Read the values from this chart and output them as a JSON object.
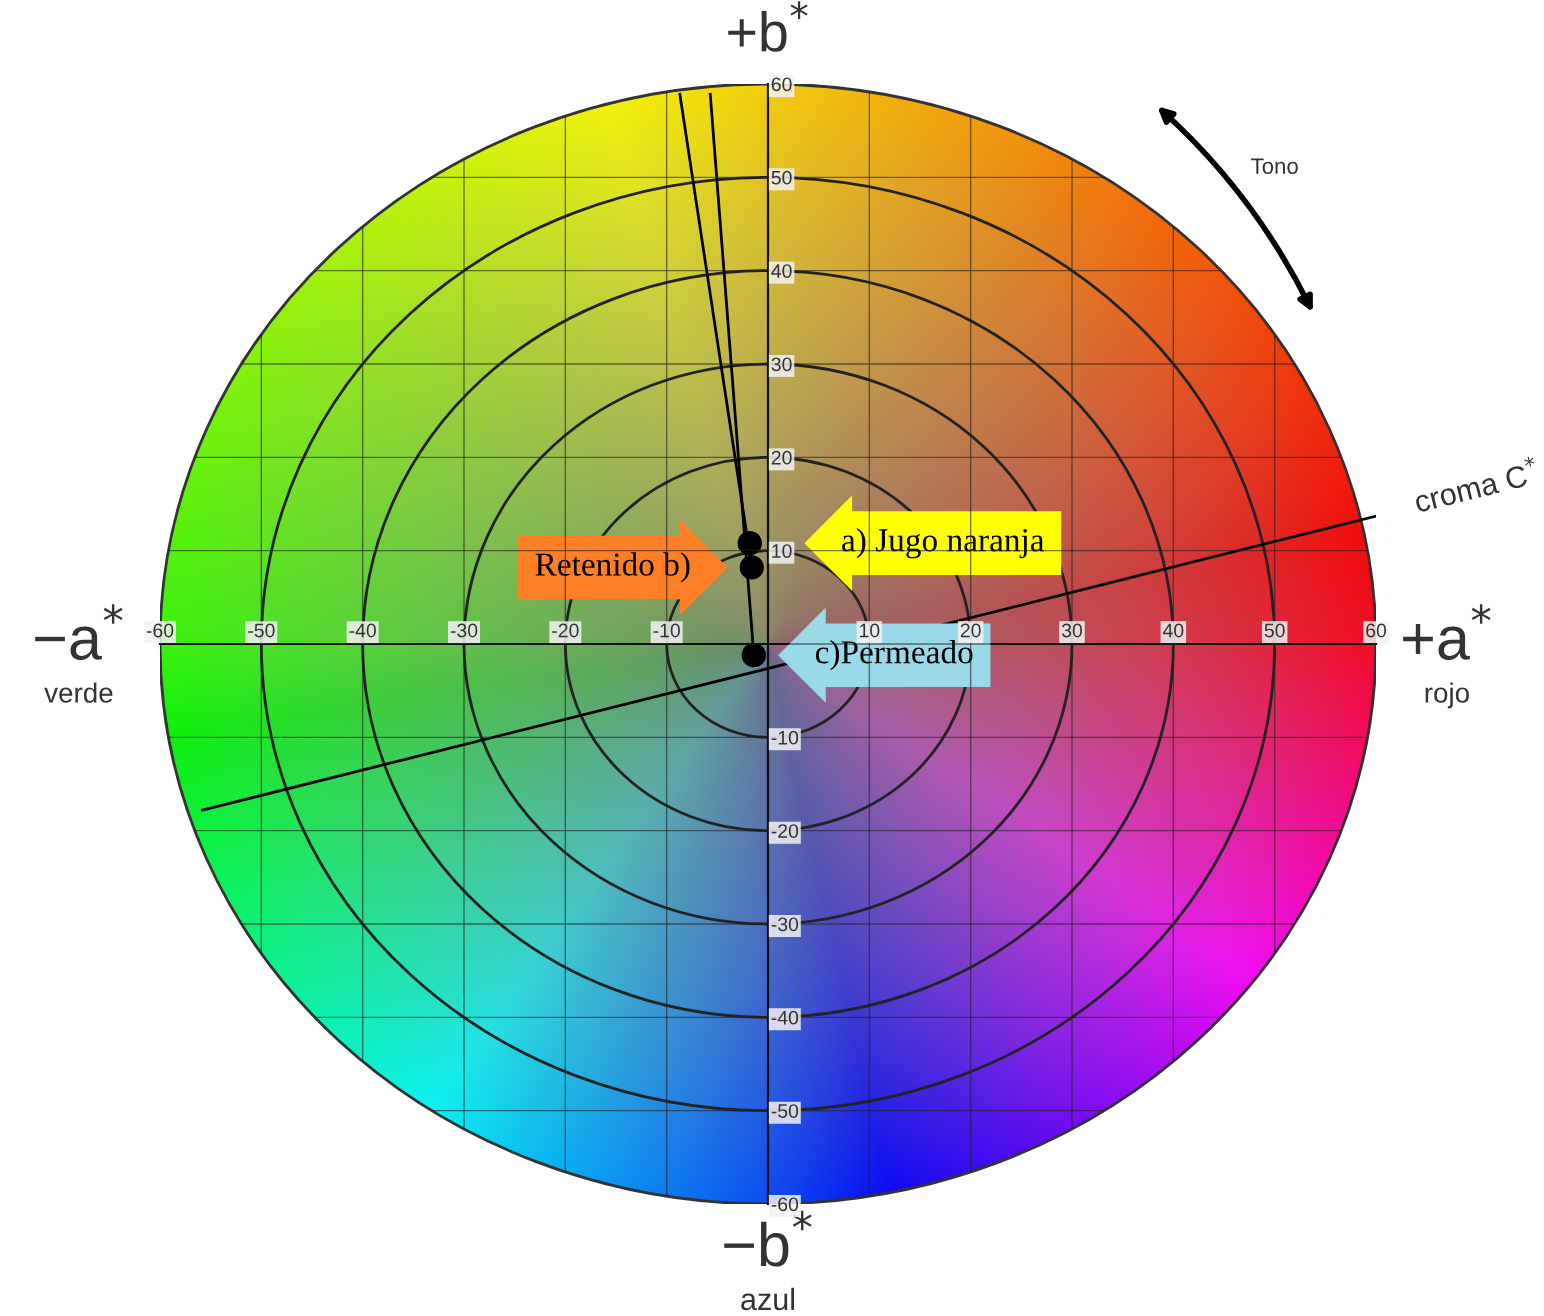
{
  "chart_data": {
    "type": "scatter",
    "xlim": [
      -60,
      60
    ],
    "ylim": [
      -60,
      60
    ],
    "xticks": [
      -60,
      -50,
      -40,
      -30,
      -20,
      -10,
      {
        "value": 0,
        "label": null
      },
      10,
      20,
      30,
      40,
      50,
      60
    ],
    "yticks": [
      -60,
      -50,
      -40,
      -30,
      -20,
      -10,
      {
        "value": 0,
        "label": null
      },
      10,
      20,
      30,
      40,
      50,
      60
    ],
    "grid": true,
    "series": [
      {
        "color": "#000000",
        "marker": "circle",
        "x": [
          -1.8,
          -1.6,
          -1.4
        ],
        "values": [
          10.8,
          8.2,
          -1.2
        ]
      },
      {
        "type": "line",
        "color": "#000000",
        "x": [
          -55.8,
          60
        ],
        "values": [
          -17.8,
          13.7
        ]
      },
      {
        "type": "line",
        "color": "#000000",
        "x": [
          -8.7,
          -1.6
        ],
        "values": [
          58.9,
          8.2
        ]
      },
      {
        "type": "line",
        "color": "#000000",
        "x": [
          -5.7,
          -1.4
        ],
        "values": [
          58.9,
          -1.2
        ]
      }
    ],
    "annotations": [
      {
        "text": "a) Jugo naranja",
        "x": -1.8,
        "y": 10.8
      },
      {
        "text": "Retenido b)",
        "x": -1.6,
        "y": 8.2
      },
      {
        "text": "c)Permeado",
        "x": -1.4,
        "y": -1.2
      },
      "−a$^{*}$",
      "verde",
      "+a$^{*}$",
      "rojo",
      "+b$^{*}$",
      "−b$^{*}$",
      "azul",
      "Tono",
      "croma C$^{*}$"
    ]
  }
}
